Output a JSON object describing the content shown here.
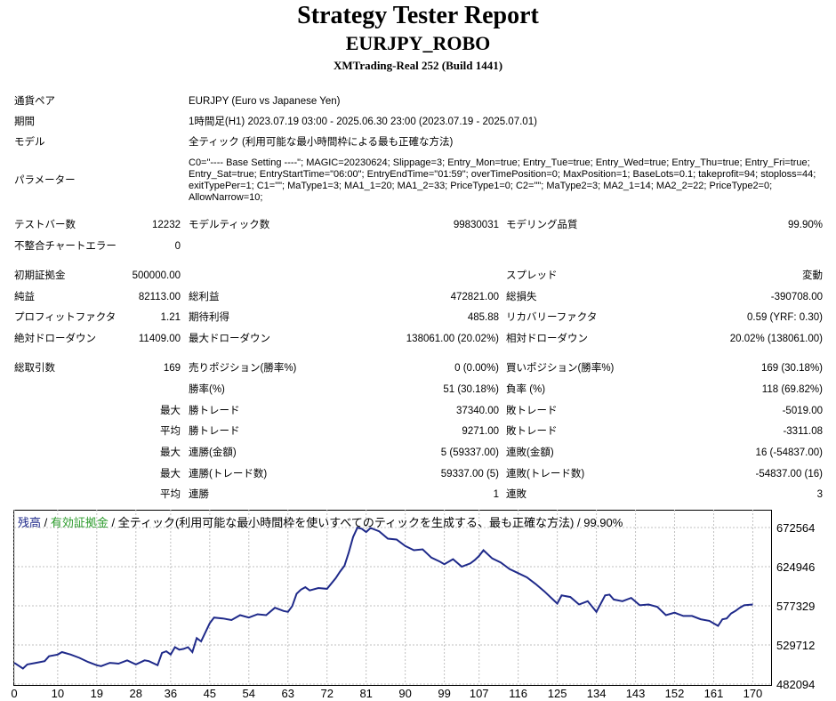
{
  "header": {
    "title": "Strategy Tester Report",
    "subtitle": "EURJPY_ROBO",
    "build": "XMTrading-Real 252 (Build 1441)"
  },
  "info": {
    "symbol_label": "通貨ペア",
    "symbol_value": "EURJPY (Euro vs Japanese Yen)",
    "period_label": "期間",
    "period_value": "1時間足(H1) 2023.07.19 03:00 - 2025.06.30 23:00 (2023.07.19 - 2025.07.01)",
    "model_label": "モデル",
    "model_value": "全ティック (利用可能な最小時間枠による最も正確な方法)",
    "params_label": "パラメーター",
    "params_value": "C0=\"---- Base Setting ----\"; MAGIC=20230624; Slippage=3; Entry_Mon=true; Entry_Tue=true; Entry_Wed=true; Entry_Thu=true; Entry_Fri=true; Entry_Sat=true; EntryStartTime=\"06:00\"; EntryEndTime=\"01:59\"; overTimePosition=0; MaxPosition=1; BaseLots=0.1; takeprofit=94; stoploss=44; exitTypePer=1; C1=\"\"; MaType1=3; MA1_1=20; MA1_2=33; PriceType1=0; C2=\"\"; MaType2=3; MA2_1=14; MA2_2=22; PriceType2=0; AllowNarrow=10;"
  },
  "stats": {
    "bars_label": "テストバー数",
    "bars_value": "12232",
    "ticks_label": "モデルティック数",
    "ticks_value": "99830031",
    "quality_label": "モデリング品質",
    "quality_value": "99.90%",
    "mismatch_label": "不整合チャートエラー",
    "mismatch_value": "0",
    "deposit_label": "初期証拠金",
    "deposit_value": "500000.00",
    "spread_label": "スプレッド",
    "spread_value": "変動",
    "net_label": "純益",
    "net_value": "82113.00",
    "gross_profit_label": "総利益",
    "gross_profit_value": "472821.00",
    "gross_loss_label": "総損失",
    "gross_loss_value": "-390708.00",
    "pf_label": "プロフィットファクタ",
    "pf_value": "1.21",
    "payoff_label": "期待利得",
    "payoff_value": "485.88",
    "recovery_label": "リカバリーファクタ",
    "recovery_value": "0.59 (YRF: 0.30)",
    "abs_dd_label": "絶対ドローダウン",
    "abs_dd_value": "11409.00",
    "max_dd_label": "最大ドローダウン",
    "max_dd_value": "138061.00 (20.02%)",
    "rel_dd_label": "相対ドローダウン",
    "rel_dd_value": "20.02% (138061.00)",
    "trades_label": "総取引数",
    "trades_value": "169",
    "short_label": "売りポジション(勝率%)",
    "short_value": "0 (0.00%)",
    "long_label": "買いポジション(勝率%)",
    "long_value": "169 (30.18%)",
    "win_label": "勝率(%)",
    "win_value": "51 (30.18%)",
    "loss_label": "負率 (%)",
    "loss_value": "118 (69.82%)",
    "max_prefix": "最大",
    "avg_prefix": "平均",
    "largest_win_label": "勝トレード",
    "largest_win_value": "37340.00",
    "largest_loss_label": "敗トレード",
    "largest_loss_value": "-5019.00",
    "avg_win_label": "勝トレード",
    "avg_win_value": "9271.00",
    "avg_loss_label": "敗トレード",
    "avg_loss_value": "-3311.08",
    "consec_win_amt_label": "連勝(金額)",
    "consec_win_amt_value": "5 (59337.00)",
    "consec_loss_amt_label": "連敗(金額)",
    "consec_loss_amt_value": "16 (-54837.00)",
    "consec_win_cnt_label": "連勝(トレード数)",
    "consec_win_cnt_value": "59337.00 (5)",
    "consec_loss_cnt_label": "連敗(トレード数)",
    "consec_loss_cnt_value": "-54837.00 (16)",
    "avg_consec_win_label": "連勝",
    "avg_consec_win_value": "1",
    "avg_consec_loss_label": "連敗",
    "avg_consec_loss_value": "3"
  },
  "legend": {
    "balance": "残高",
    "sep1": " / ",
    "equity": "有効証拠金",
    "sep2": " / ",
    "rest": "全ティック(利用可能な最小時間枠を使いすべてのティックを生成する、最も正確な方法) / 99.90%"
  },
  "colors": {
    "balance_line": "#1f2a8a",
    "equity_text": "#2a9a2a",
    "grid": "#c0c0c0"
  },
  "chart_data": {
    "type": "line",
    "x_ticks": [
      "0",
      "10",
      "19",
      "28",
      "36",
      "45",
      "54",
      "63",
      "72",
      "81",
      "90",
      "99",
      "107",
      "116",
      "125",
      "134",
      "143",
      "152",
      "161",
      "170"
    ],
    "y_ticks": [
      "672564",
      "624946",
      "577329",
      "529712",
      "482094"
    ],
    "ylim": [
      482094,
      672564
    ],
    "xlim": [
      0,
      174
    ],
    "grid": true,
    "series": [
      {
        "name": "残高",
        "x": [
          0,
          2,
          3,
          5,
          7,
          8,
          10,
          11,
          13,
          15,
          17,
          19,
          20,
          22,
          24,
          26,
          28,
          30,
          31,
          33,
          34,
          35,
          36,
          37,
          38,
          39,
          40,
          41,
          42,
          43,
          44,
          45,
          46,
          48,
          50,
          52,
          54,
          56,
          58,
          60,
          62,
          63,
          64,
          65,
          66,
          67,
          68,
          70,
          72,
          74,
          75,
          76,
          77,
          78,
          79,
          80,
          81,
          82,
          84,
          86,
          88,
          90,
          92,
          94,
          96,
          98,
          99,
          101,
          103,
          105,
          106,
          107,
          108,
          110,
          112,
          114,
          116,
          118,
          120,
          122,
          124,
          125,
          126,
          128,
          130,
          132,
          134,
          136,
          137,
          138,
          140,
          142,
          144,
          146,
          148,
          150,
          152,
          154,
          156,
          158,
          160,
          161,
          162,
          163,
          164,
          165,
          166,
          167,
          168,
          170
        ],
        "y": [
          508000,
          501000,
          506000,
          508000,
          510000,
          516000,
          518000,
          521000,
          518000,
          514000,
          509000,
          505000,
          504000,
          508000,
          507000,
          511000,
          506000,
          511000,
          510000,
          505000,
          520000,
          522000,
          518000,
          527000,
          524000,
          525000,
          527000,
          521000,
          538000,
          534000,
          545000,
          556000,
          563000,
          562000,
          560000,
          566000,
          563000,
          567000,
          566000,
          575000,
          571000,
          570000,
          577000,
          592000,
          597000,
          600000,
          596000,
          599000,
          598000,
          611000,
          619000,
          626000,
          642000,
          661000,
          672500,
          671000,
          667000,
          672000,
          668000,
          659000,
          658000,
          650000,
          645000,
          646000,
          636000,
          631000,
          628000,
          634000,
          625000,
          629000,
          633000,
          638000,
          645000,
          635000,
          630000,
          622000,
          617000,
          612000,
          604000,
          595000,
          585000,
          580000,
          590000,
          588000,
          579000,
          583000,
          570000,
          590000,
          591000,
          585000,
          583000,
          587000,
          578000,
          579000,
          576000,
          566000,
          569000,
          565000,
          565000,
          561000,
          559000,
          556000,
          553000,
          561000,
          562000,
          568000,
          571000,
          575000,
          578000,
          579000
        ]
      }
    ]
  }
}
